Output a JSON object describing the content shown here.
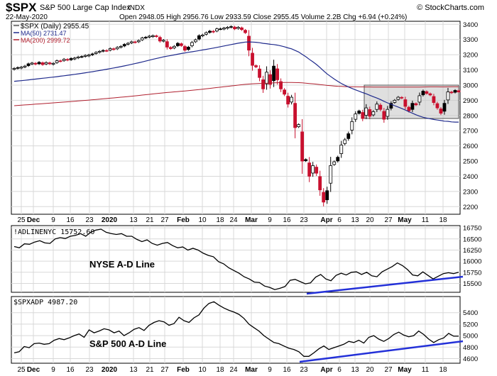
{
  "header": {
    "symbol": "$SPX",
    "name": "S&P 500 Large Cap Index",
    "exchange": "INDX",
    "date": "22-May-2020",
    "ohlc": "Open 2948.05  High 2956.76  Low 2933.59  Close 2955.45  Volume 2.2B  Chg +6.94 (+0.24%)",
    "watermark": "© StockCharts.com"
  },
  "legend": {
    "price": "$SPX (Daily) 2955.45",
    "ma50": "MA(50) 2731.47",
    "ma200": "MA(200) 2999.72"
  },
  "colors": {
    "up": "#000000",
    "down": "#c8102e",
    "ma50": "#1f2a8c",
    "ma200": "#b0202f",
    "trend": "#2330d8",
    "grid": "#d8d8d8",
    "box": "#c9c9c9"
  },
  "x_labels": [
    "25",
    "Dec",
    "9",
    "16",
    "23",
    "2020",
    "13",
    "21",
    "27",
    "Feb",
    "10",
    "18",
    "24",
    "Mar",
    "9",
    "16",
    "23",
    "Apr",
    "6",
    "13",
    "20",
    "27",
    "May",
    "11",
    "18"
  ],
  "panels": {
    "adline_nyse_legend": "!ADLINENYC 15752.60",
    "adline_nyse_note": "NYSE A-D Line",
    "adline_spx_legend": "$SPXADP 4987.20",
    "adline_spx_note": "S&P 500 A-D Line"
  },
  "chart_data": [
    {
      "type": "candlestick",
      "title": "$SPX (Daily) 2955.45",
      "ylim": [
        2150,
        3420
      ],
      "y_ticks": [
        2200,
        2300,
        2400,
        2500,
        2600,
        2700,
        2800,
        2900,
        3000,
        3100,
        3200,
        3300,
        3400
      ],
      "close": [
        3110,
        3115,
        3118,
        3125,
        3140,
        3145,
        3138,
        3150,
        3135,
        3148,
        3140,
        3143,
        3160,
        3158,
        3170,
        3165,
        3175,
        3178,
        3185,
        3188,
        3195,
        3198,
        3205,
        3215,
        3222,
        3228,
        3226,
        3240,
        3235,
        3248,
        3255,
        3268,
        3275,
        3285,
        3282,
        3293,
        3310,
        3315,
        3322,
        3325,
        3320,
        3290,
        3295,
        3250,
        3240,
        3255,
        3275,
        3260,
        3230,
        3250,
        3280,
        3298,
        3325,
        3330,
        3345,
        3355,
        3350,
        3370,
        3370,
        3375,
        3380,
        3385,
        3370,
        3380,
        3365,
        3345,
        3230,
        3130,
        3120,
        3050,
        2975,
        3085,
        3005,
        3125,
        3035,
        2975,
        2940,
        2875,
        2920,
        2720,
        2740,
        2500,
        2510,
        2400,
        2470,
        2420,
        2310,
        2230,
        2305,
        2470,
        2495,
        2525,
        2605,
        2640,
        2680,
        2760,
        2810,
        2830,
        2780,
        2850,
        2795,
        2825,
        2875,
        2840,
        2775,
        2840,
        2880,
        2900,
        2920,
        2915,
        2860,
        2830,
        2880,
        2870,
        2930,
        2960,
        2945,
        2935,
        2885,
        2850,
        2815,
        2880,
        2955,
        2950,
        2965,
        2955
      ],
      "series": [
        {
          "name": "MA(50) 2731.47"
        },
        {
          "name": "MA(200) 2999.72"
        }
      ]
    },
    {
      "type": "line",
      "title": "!ADLINENYC 15752.60",
      "ylim": [
        15300,
        16800
      ],
      "y_ticks": [
        15500,
        15750,
        16000,
        16250,
        16500,
        16750
      ],
      "values": [
        16330,
        16300,
        16390,
        16380,
        16430,
        16460,
        16410,
        16400,
        16500,
        16530,
        16510,
        16560,
        16580,
        16620,
        16560,
        16650,
        16700,
        16720,
        16650,
        16620,
        16600,
        16620,
        16560,
        16560,
        16490,
        16440,
        16480,
        16400,
        16360,
        16400,
        16420,
        16350,
        16300,
        16320,
        16250,
        16290,
        16250,
        16180,
        16130,
        16100,
        15990,
        15940,
        15850,
        15790,
        15730,
        15650,
        15600,
        15530,
        15520,
        15440,
        15410,
        15360,
        15390,
        15430,
        15570,
        15590,
        15540,
        15490,
        15510,
        15640,
        15700,
        15600,
        15560,
        15680,
        15730,
        15690,
        15750,
        15760,
        15700,
        15750,
        15670,
        15650,
        15760,
        15820,
        15880,
        15960,
        15900,
        15810,
        15690,
        15670,
        15760,
        15680,
        15600,
        15660,
        15720,
        15740,
        15720,
        15750
      ]
    },
    {
      "type": "line",
      "title": "$SPXADP 4987.20",
      "ylim": [
        4520,
        5680
      ],
      "y_ticks": [
        4600,
        4800,
        5000,
        5200,
        5400
      ],
      "values": [
        4700,
        4720,
        4810,
        4790,
        4860,
        4870,
        4850,
        4860,
        4920,
        4950,
        4930,
        4960,
        5000,
        5030,
        4970,
        5100,
        5050,
        5080,
        5120,
        5100,
        5050,
        5080,
        5000,
        5050,
        5110,
        5140,
        5090,
        5180,
        5230,
        5260,
        5240,
        5180,
        5210,
        5320,
        5260,
        5230,
        5310,
        5360,
        5480,
        5560,
        5590,
        5530,
        5480,
        5440,
        5410,
        5370,
        5300,
        5200,
        5140,
        5080,
        5000,
        4940,
        4880,
        4860,
        4820,
        4780,
        4760,
        4720,
        4640,
        4640,
        4700,
        4770,
        4820,
        4760,
        4790,
        4820,
        4850,
        4900,
        4880,
        4920,
        4870,
        4970,
        5000,
        4940,
        4900,
        4950,
        5020,
        5060,
        5010,
        4980,
        5000,
        5080,
        5020,
        4940,
        4880,
        4930,
        4960,
        5040,
        4990,
        4990
      ]
    }
  ]
}
